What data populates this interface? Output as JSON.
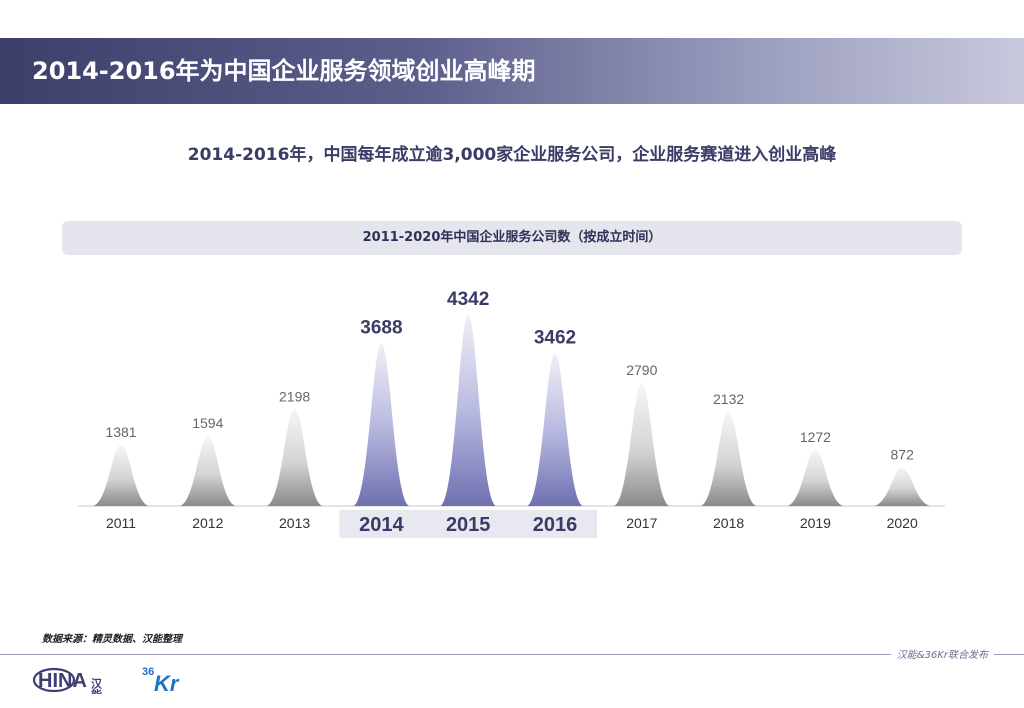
{
  "header": {
    "title": "2014-2016年为中国企业服务领域创业高峰期"
  },
  "subtitle": "2014-2016年，中国每年成立逾3,000家企业服务公司，企业服务赛道进入创业高峰",
  "chart_data": {
    "type": "area",
    "title": "2011-2020年中国企业服务公司数（按成立时间）",
    "categories": [
      "2011",
      "2012",
      "2013",
      "2014",
      "2015",
      "2016",
      "2017",
      "2018",
      "2019",
      "2020"
    ],
    "values": [
      1381,
      1594,
      2198,
      3688,
      4342,
      3462,
      2790,
      2132,
      1272,
      872
    ],
    "highlight": [
      "2014",
      "2015",
      "2016"
    ],
    "xlabel": "",
    "ylabel": "",
    "ylim": [
      0,
      4500
    ],
    "grid": false,
    "colors": {
      "normal": "#8c8c8c",
      "highlight": "#6f70b0",
      "highlight_label": "#3a3c66",
      "normal_label": "#666666",
      "highlight_band": "#e8e8f0"
    }
  },
  "footer": {
    "source": "数据来源：精灵数据、汉能整理",
    "publisher": "汉能&36Kr联合发布"
  },
  "logos": {
    "china": {
      "text": "HINA",
      "extra": "汉能",
      "icon": "china-logo-icon"
    },
    "kr36": {
      "top": "36",
      "main": "Kr",
      "icon": "36kr-logo-icon"
    }
  }
}
